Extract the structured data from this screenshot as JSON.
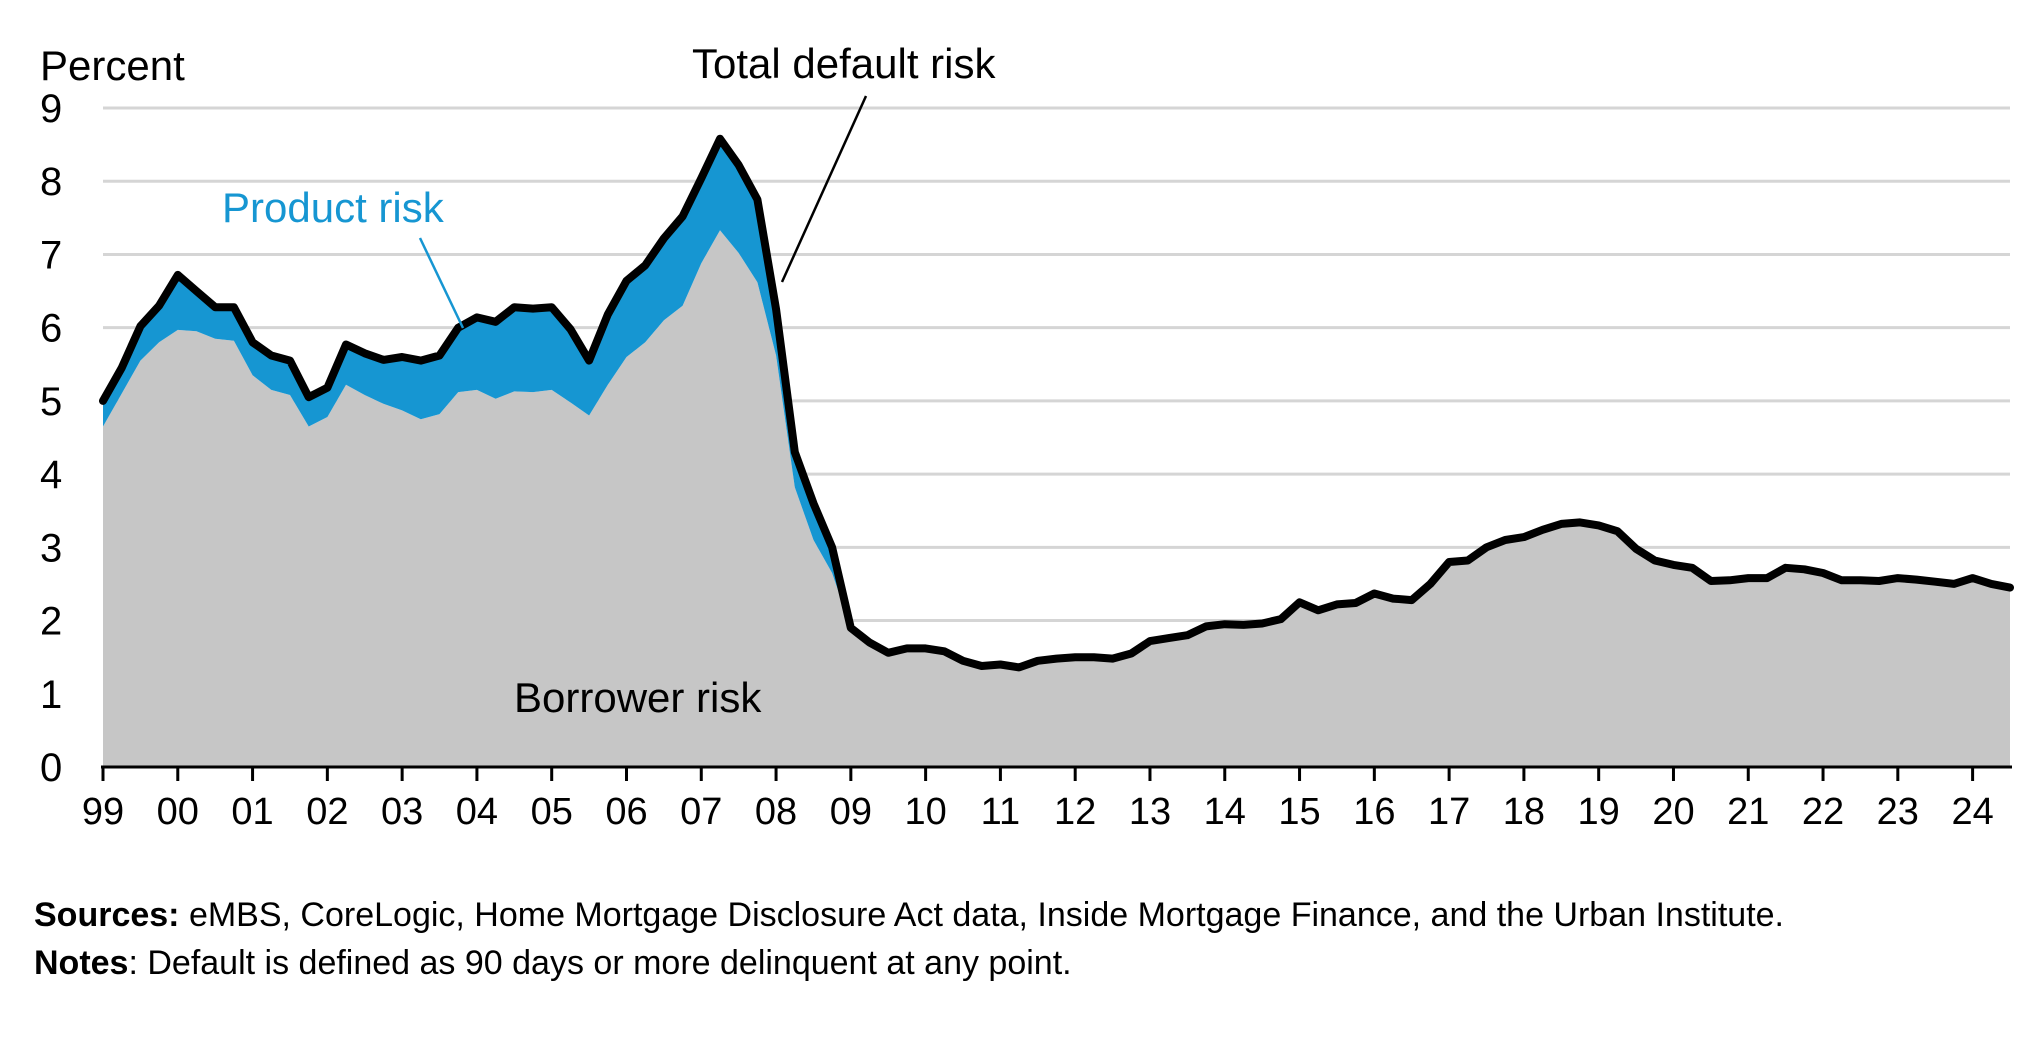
{
  "chart_data": {
    "type": "area",
    "ylabel": "Percent",
    "ylim": [
      0,
      9
    ],
    "yticks": [
      0,
      1,
      2,
      3,
      4,
      5,
      6,
      7,
      8,
      9
    ],
    "xlim": [
      1999.0,
      2024.5
    ],
    "xticks": [
      {
        "value": 1999,
        "label": "99"
      },
      {
        "value": 2000,
        "label": "00"
      },
      {
        "value": 2001,
        "label": "01"
      },
      {
        "value": 2002,
        "label": "02"
      },
      {
        "value": 2003,
        "label": "03"
      },
      {
        "value": 2004,
        "label": "04"
      },
      {
        "value": 2005,
        "label": "05"
      },
      {
        "value": 2006,
        "label": "06"
      },
      {
        "value": 2007,
        "label": "07"
      },
      {
        "value": 2008,
        "label": "08"
      },
      {
        "value": 2009,
        "label": "09"
      },
      {
        "value": 2010,
        "label": "10"
      },
      {
        "value": 2011,
        "label": "11"
      },
      {
        "value": 2012,
        "label": "12"
      },
      {
        "value": 2013,
        "label": "13"
      },
      {
        "value": 2014,
        "label": "14"
      },
      {
        "value": 2015,
        "label": "15"
      },
      {
        "value": 2016,
        "label": "16"
      },
      {
        "value": 2017,
        "label": "17"
      },
      {
        "value": 2018,
        "label": "18"
      },
      {
        "value": 2019,
        "label": "19"
      },
      {
        "value": 2020,
        "label": "20"
      },
      {
        "value": 2021,
        "label": "21"
      },
      {
        "value": 2022,
        "label": "22"
      },
      {
        "value": 2023,
        "label": "23"
      },
      {
        "value": 2024,
        "label": "24"
      }
    ],
    "grid": true,
    "colors": {
      "borrower": "#c6c6c6",
      "product": "#1696d2",
      "total": "#000000",
      "grid": "#d5d5d5",
      "product_label": "#1696d2"
    },
    "annotations": {
      "total": "Total default risk",
      "product": "Product risk",
      "borrower": "Borrower risk"
    },
    "x": [
      1999.0,
      1999.25,
      1999.5,
      1999.75,
      2000.0,
      2000.25,
      2000.5,
      2000.75,
      2001.0,
      2001.25,
      2001.5,
      2001.75,
      2002.0,
      2002.25,
      2002.5,
      2002.75,
      2003.0,
      2003.25,
      2003.5,
      2003.75,
      2004.0,
      2004.25,
      2004.5,
      2004.75,
      2005.0,
      2005.25,
      2005.5,
      2005.75,
      2006.0,
      2006.25,
      2006.5,
      2006.75,
      2007.0,
      2007.25,
      2007.5,
      2007.75,
      2008.0,
      2008.25,
      2008.5,
      2008.75,
      2009.0,
      2009.25,
      2009.5,
      2009.75,
      2010.0,
      2010.25,
      2010.5,
      2010.75,
      2011.0,
      2011.25,
      2011.5,
      2011.75,
      2012.0,
      2012.25,
      2012.5,
      2012.75,
      2013.0,
      2013.25,
      2013.5,
      2013.75,
      2014.0,
      2014.25,
      2014.5,
      2014.75,
      2015.0,
      2015.25,
      2015.5,
      2015.75,
      2016.0,
      2016.25,
      2016.5,
      2016.75,
      2017.0,
      2017.25,
      2017.5,
      2017.75,
      2018.0,
      2018.25,
      2018.5,
      2018.75,
      2019.0,
      2019.25,
      2019.5,
      2019.75,
      2020.0,
      2020.25,
      2020.5,
      2020.75,
      2021.0,
      2021.25,
      2021.5,
      2021.75,
      2022.0,
      2022.25,
      2022.5,
      2022.75,
      2023.0,
      2023.25,
      2023.5,
      2023.75,
      2024.0,
      2024.25,
      2024.5
    ],
    "series": [
      {
        "name": "Borrower risk",
        "values": [
          4.65,
          5.1,
          5.55,
          5.8,
          5.97,
          5.95,
          5.85,
          5.82,
          5.35,
          5.15,
          5.08,
          4.65,
          4.78,
          5.22,
          5.08,
          4.96,
          4.87,
          4.75,
          4.82,
          5.12,
          5.15,
          5.03,
          5.13,
          5.12,
          5.15,
          4.98,
          4.8,
          5.22,
          5.6,
          5.8,
          6.1,
          6.3,
          6.88,
          7.33,
          7.02,
          6.62,
          5.62,
          3.82,
          3.1,
          2.65,
          1.9,
          1.7,
          1.56,
          1.62,
          1.62,
          1.58,
          1.45,
          1.38,
          1.4,
          1.36,
          1.45,
          1.48,
          1.5,
          1.5,
          1.48,
          1.55,
          1.72,
          1.76,
          1.8,
          1.92,
          1.95,
          1.94,
          1.96,
          2.02,
          2.25,
          2.14,
          2.22,
          2.24,
          2.37,
          2.3,
          2.28,
          2.5,
          2.8,
          2.82,
          3.0,
          3.1,
          3.14,
          3.24,
          3.32,
          3.34,
          3.3,
          3.22,
          2.98,
          2.82,
          2.76,
          2.72,
          2.54,
          2.55,
          2.58,
          2.58,
          2.72,
          2.7,
          2.65,
          2.55,
          2.55,
          2.54,
          2.58,
          2.56,
          2.53,
          2.5,
          2.58,
          2.5,
          2.45
        ]
      },
      {
        "name": "Total default risk",
        "values": [
          5.0,
          5.45,
          6.02,
          6.3,
          6.72,
          6.5,
          6.28,
          6.28,
          5.8,
          5.62,
          5.55,
          5.05,
          5.18,
          5.77,
          5.65,
          5.56,
          5.6,
          5.55,
          5.62,
          6.0,
          6.14,
          6.08,
          6.28,
          6.26,
          6.28,
          5.98,
          5.55,
          6.18,
          6.64,
          6.85,
          7.22,
          7.52,
          8.04,
          8.58,
          8.22,
          7.75,
          6.25,
          4.3,
          3.6,
          3.0,
          1.9,
          1.7,
          1.56,
          1.62,
          1.62,
          1.58,
          1.45,
          1.38,
          1.4,
          1.36,
          1.45,
          1.48,
          1.5,
          1.5,
          1.48,
          1.55,
          1.72,
          1.76,
          1.8,
          1.92,
          1.95,
          1.94,
          1.96,
          2.02,
          2.25,
          2.14,
          2.22,
          2.24,
          2.37,
          2.3,
          2.28,
          2.5,
          2.8,
          2.82,
          3.0,
          3.1,
          3.14,
          3.24,
          3.32,
          3.34,
          3.3,
          3.22,
          2.98,
          2.82,
          2.76,
          2.72,
          2.54,
          2.55,
          2.58,
          2.58,
          2.72,
          2.7,
          2.65,
          2.55,
          2.55,
          2.54,
          2.58,
          2.56,
          2.53,
          2.5,
          2.58,
          2.5,
          2.45
        ]
      }
    ]
  },
  "footnotes": {
    "sources_label": "Sources:",
    "sources_text": " eMBS, CoreLogic, Home Mortgage Disclosure Act data, Inside Mortgage Finance, and the Urban Institute.",
    "notes_label": "Notes",
    "notes_text": ": Default is defined as 90 days or more delinquent at any point."
  }
}
